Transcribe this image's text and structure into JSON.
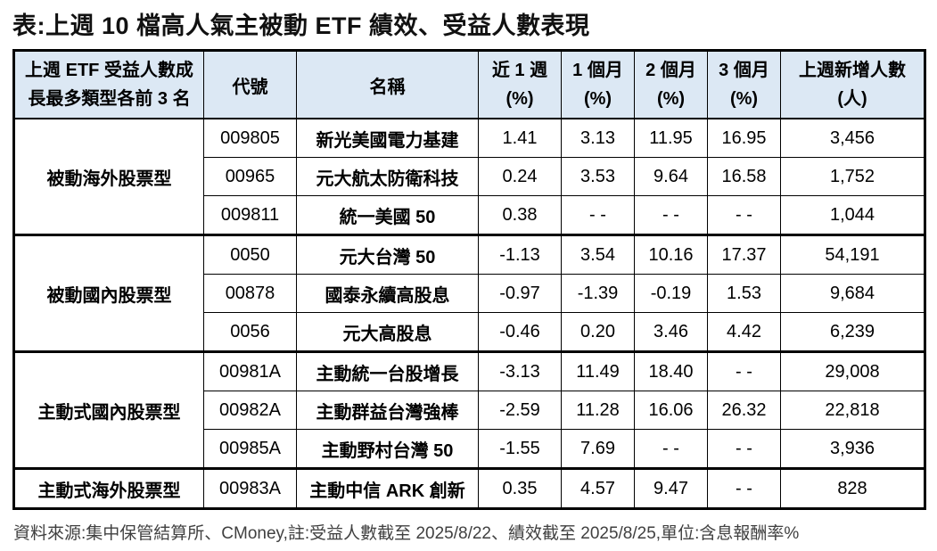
{
  "title": "表:上週 10 檔高人氣主被動 ETF 績效、受益人數表現",
  "colors": {
    "header_bg": "#dce8f4",
    "border": "#000000",
    "footer_text": "#404040"
  },
  "header": {
    "category_line1": "上週 ETF 受益人數成",
    "category_line2": "長最多類型各前 3 名",
    "code": "代號",
    "name": "名稱",
    "cols": [
      {
        "l1": "近 1 週",
        "l2": "(%)"
      },
      {
        "l1": "1 個月",
        "l2": "(%)"
      },
      {
        "l1": "2 個月",
        "l2": "(%)"
      },
      {
        "l1": "3 個月",
        "l2": "(%)"
      },
      {
        "l1": "上週新增人數",
        "l2": "(人)"
      }
    ]
  },
  "groups": [
    {
      "category": "被動海外股票型",
      "rows": [
        {
          "code": "009805",
          "name": "新光美國電力基建",
          "values": [
            "1.41",
            "3.13",
            "11.95",
            "16.95",
            "3,456"
          ]
        },
        {
          "code": "00965",
          "name": "元大航太防衛科技",
          "values": [
            "0.24",
            "3.53",
            "9.64",
            "16.58",
            "1,752"
          ]
        },
        {
          "code": "009811",
          "name": "統一美國 50",
          "values": [
            "0.38",
            "- -",
            "- -",
            "- -",
            "1,044"
          ]
        }
      ]
    },
    {
      "category": "被動國內股票型",
      "rows": [
        {
          "code": "0050",
          "name": "元大台灣 50",
          "values": [
            "-1.13",
            "3.54",
            "10.16",
            "17.37",
            "54,191"
          ]
        },
        {
          "code": "00878",
          "name": "國泰永續高股息",
          "values": [
            "-0.97",
            "-1.39",
            "-0.19",
            "1.53",
            "9,684"
          ]
        },
        {
          "code": "0056",
          "name": "元大高股息",
          "values": [
            "-0.46",
            "0.20",
            "3.46",
            "4.42",
            "6,239"
          ]
        }
      ]
    },
    {
      "category": "主動式國內股票型",
      "rows": [
        {
          "code": "00981A",
          "name": "主動統一台股增長",
          "values": [
            "-3.13",
            "11.49",
            "18.40",
            "- -",
            "29,008"
          ]
        },
        {
          "code": "00982A",
          "name": "主動群益台灣強棒",
          "values": [
            "-2.59",
            "11.28",
            "16.06",
            "26.32",
            "22,818"
          ]
        },
        {
          "code": "00985A",
          "name": "主動野村台灣 50",
          "values": [
            "-1.55",
            "7.69",
            "- -",
            "- -",
            "3,936"
          ]
        }
      ]
    },
    {
      "category": "主動式海外股票型",
      "rows": [
        {
          "code": "00983A",
          "name": "主動中信 ARK 創新",
          "values": [
            "0.35",
            "4.57",
            "9.47",
            "- -",
            "828"
          ]
        }
      ]
    }
  ],
  "footer": "資料來源:集中保管結算所、CMoney,註:受益人數截至 2025/8/22、績效截至 2025/8/25,單位:含息報酬率%"
}
